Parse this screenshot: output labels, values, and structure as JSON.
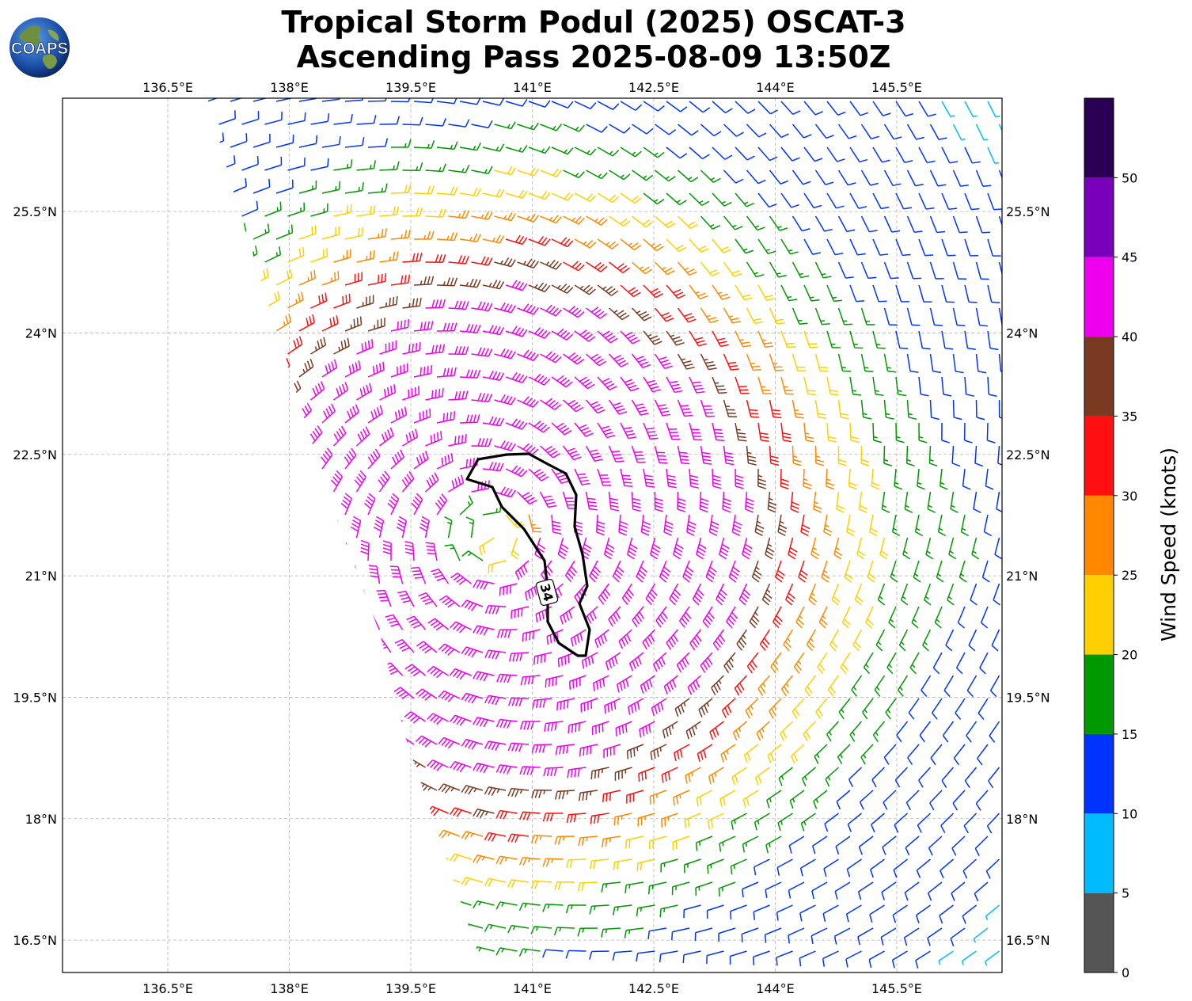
{
  "title": {
    "line1": "Tropical Storm Podul (2025) OSCAT-3",
    "line2": "Ascending Pass 2025-08-09 13:50Z"
  },
  "logo": {
    "text": "COAPS",
    "icon": "globe-icon"
  },
  "map": {
    "lon_range": [
      135.2,
      146.8
    ],
    "lat_range": [
      16.1,
      26.9
    ],
    "lon_ticks": [
      "136.5°E",
      "138°E",
      "139.5°E",
      "141°E",
      "142.5°E",
      "144°E",
      "145.5°E"
    ],
    "lon_tick_values": [
      136.5,
      138,
      139.5,
      141,
      142.5,
      144,
      145.5
    ],
    "lat_ticks": [
      "25.5°N",
      "24°N",
      "22.5°N",
      "21°N",
      "19.5°N",
      "18°N",
      "16.5°N"
    ],
    "lat_tick_values": [
      25.5,
      24,
      22.5,
      21,
      19.5,
      18,
      16.5
    ],
    "grid": true,
    "storm_center": {
      "lon": 140.5,
      "lat": 21.5
    },
    "contour_label": "34"
  },
  "colorbar": {
    "label": "Wind Speed (knots)",
    "tick_labels": [
      "0",
      "5",
      "10",
      "15",
      "20",
      "25",
      "30",
      "35",
      "40",
      "45",
      "50"
    ],
    "bins": [
      {
        "min": 0,
        "max": 5,
        "color": "#555555"
      },
      {
        "min": 5,
        "max": 10,
        "color": "#00bbff"
      },
      {
        "min": 10,
        "max": 15,
        "color": "#0033ff"
      },
      {
        "min": 15,
        "max": 20,
        "color": "#009900"
      },
      {
        "min": 20,
        "max": 25,
        "color": "#ffd000"
      },
      {
        "min": 25,
        "max": 30,
        "color": "#ff8800"
      },
      {
        "min": 30,
        "max": 35,
        "color": "#ff0f0f"
      },
      {
        "min": 35,
        "max": 40,
        "color": "#7a3a22"
      },
      {
        "min": 40,
        "max": 45,
        "color": "#ee00ee"
      },
      {
        "min": 45,
        "max": 50,
        "color": "#7a00bb"
      },
      {
        "min": 50,
        "max": 55,
        "color": "#2a0055"
      }
    ]
  }
}
